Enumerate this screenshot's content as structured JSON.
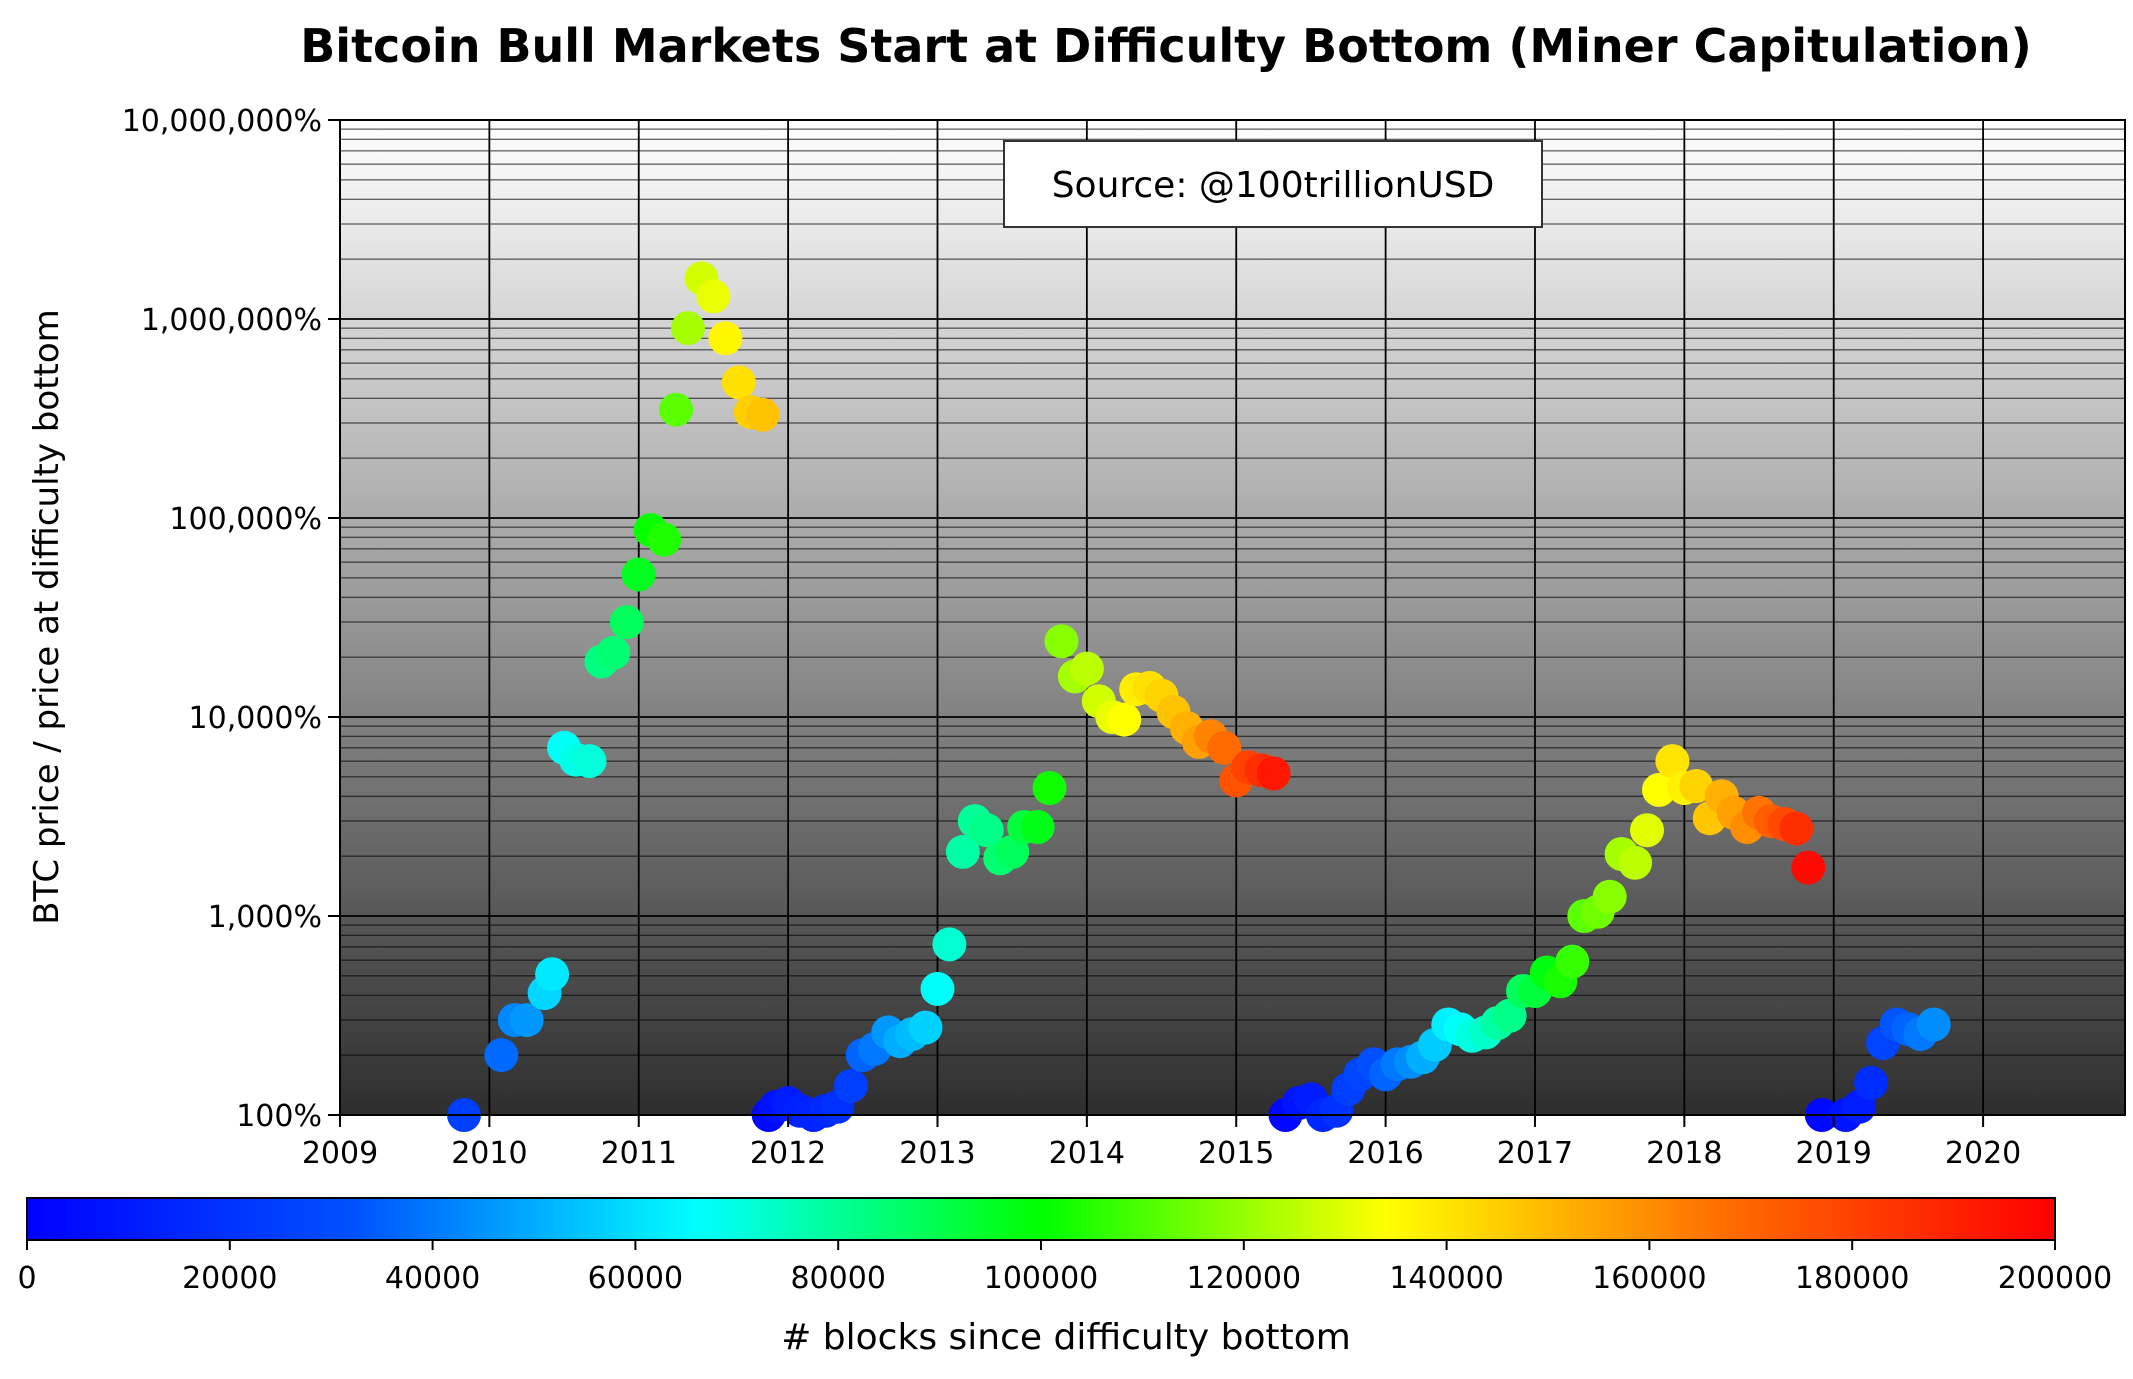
{
  "chart_data": {
    "type": "scatter",
    "title": "Bitcoin Bull Markets Start at Difficulty Bottom (Miner Capitulation)",
    "ylabel": "BTC price / price at difficulty bottom",
    "xlabel": "",
    "y_scale": "log",
    "y_unit": "%",
    "ylim": [
      100,
      10000000
    ],
    "y_ticks": [
      {
        "value": 100,
        "label": "100%"
      },
      {
        "value": 1000,
        "label": "1,000%"
      },
      {
        "value": 10000,
        "label": "10,000%"
      },
      {
        "value": 100000,
        "label": "100,000%"
      },
      {
        "value": 1000000,
        "label": "1,000,000%"
      },
      {
        "value": 10000000,
        "label": "10,000,000%"
      }
    ],
    "xlim": [
      2009.0,
      2020.95
    ],
    "x_ticks": [
      {
        "value": 2009,
        "label": "2009"
      },
      {
        "value": 2010,
        "label": "2010"
      },
      {
        "value": 2011,
        "label": "2011"
      },
      {
        "value": 2012,
        "label": "2012"
      },
      {
        "value": 2013,
        "label": "2013"
      },
      {
        "value": 2014,
        "label": "2014"
      },
      {
        "value": 2015,
        "label": "2015"
      },
      {
        "value": 2016,
        "label": "2016"
      },
      {
        "value": 2017,
        "label": "2017"
      },
      {
        "value": 2018,
        "label": "2018"
      },
      {
        "value": 2019,
        "label": "2019"
      },
      {
        "value": 2020,
        "label": "2020"
      }
    ],
    "grid": true,
    "annotation": "Source: @100trillionUSD",
    "colorbar": {
      "label": "# blocks since difficulty bottom",
      "min": 0,
      "max": 200000,
      "colormap": "jet",
      "ticks": [
        {
          "value": 0,
          "label": "0"
        },
        {
          "value": 20000,
          "label": "20000"
        },
        {
          "value": 40000,
          "label": "40000"
        },
        {
          "value": 60000,
          "label": "60000"
        },
        {
          "value": 80000,
          "label": "80000"
        },
        {
          "value": 100000,
          "label": "100000"
        },
        {
          "value": 120000,
          "label": "120000"
        },
        {
          "value": 140000,
          "label": "140000"
        },
        {
          "value": 160000,
          "label": "160000"
        },
        {
          "value": 180000,
          "label": "180000"
        },
        {
          "value": 200000,
          "label": "200000"
        }
      ]
    },
    "points": [
      {
        "x": 2009.83,
        "y": 100,
        "blocks": 25000
      },
      {
        "x": 2010.08,
        "y": 200,
        "blocks": 37000
      },
      {
        "x": 2010.17,
        "y": 300,
        "blocks": 43000
      },
      {
        "x": 2010.25,
        "y": 300,
        "blocks": 46000
      },
      {
        "x": 2010.37,
        "y": 410,
        "blocks": 58000
      },
      {
        "x": 2010.42,
        "y": 510,
        "blocks": 62000
      },
      {
        "x": 2010.5,
        "y": 7000,
        "blocks": 67000
      },
      {
        "x": 2010.58,
        "y": 6100,
        "blocks": 69000
      },
      {
        "x": 2010.67,
        "y": 6000,
        "blocks": 71000
      },
      {
        "x": 2010.75,
        "y": 19000,
        "blocks": 83000
      },
      {
        "x": 2010.83,
        "y": 21000,
        "blocks": 85000
      },
      {
        "x": 2010.92,
        "y": 30000,
        "blocks": 88000
      },
      {
        "x": 2011.0,
        "y": 52000,
        "blocks": 96000
      },
      {
        "x": 2011.08,
        "y": 87000,
        "blocks": 101000
      },
      {
        "x": 2011.17,
        "y": 78000,
        "blocks": 104000
      },
      {
        "x": 2011.25,
        "y": 350000,
        "blocks": 112000
      },
      {
        "x": 2011.33,
        "y": 900000,
        "blocks": 122000
      },
      {
        "x": 2011.42,
        "y": 1600000,
        "blocks": 128000
      },
      {
        "x": 2011.5,
        "y": 1300000,
        "blocks": 131000
      },
      {
        "x": 2011.58,
        "y": 800000,
        "blocks": 136000
      },
      {
        "x": 2011.67,
        "y": 480000,
        "blocks": 141000
      },
      {
        "x": 2011.75,
        "y": 340000,
        "blocks": 145000
      },
      {
        "x": 2011.83,
        "y": 330000,
        "blocks": 148000
      },
      {
        "x": 2011.87,
        "y": 100,
        "blocks": 3000
      },
      {
        "x": 2011.92,
        "y": 110,
        "blocks": 7000
      },
      {
        "x": 2012.0,
        "y": 115,
        "blocks": 11000
      },
      {
        "x": 2012.08,
        "y": 105,
        "blocks": 13000
      },
      {
        "x": 2012.17,
        "y": 100,
        "blocks": 14000
      },
      {
        "x": 2012.25,
        "y": 105,
        "blocks": 16000
      },
      {
        "x": 2012.33,
        "y": 110,
        "blocks": 19000
      },
      {
        "x": 2012.42,
        "y": 140,
        "blocks": 25000
      },
      {
        "x": 2012.5,
        "y": 200,
        "blocks": 36000
      },
      {
        "x": 2012.58,
        "y": 215,
        "blocks": 40000
      },
      {
        "x": 2012.67,
        "y": 260,
        "blocks": 46000
      },
      {
        "x": 2012.75,
        "y": 235,
        "blocks": 50000
      },
      {
        "x": 2012.83,
        "y": 255,
        "blocks": 53000
      },
      {
        "x": 2012.92,
        "y": 275,
        "blocks": 57000
      },
      {
        "x": 2013.0,
        "y": 430,
        "blocks": 67000
      },
      {
        "x": 2013.08,
        "y": 720,
        "blocks": 72000
      },
      {
        "x": 2013.17,
        "y": 2100,
        "blocks": 78000
      },
      {
        "x": 2013.25,
        "y": 3000,
        "blocks": 80000
      },
      {
        "x": 2013.33,
        "y": 2700,
        "blocks": 82000
      },
      {
        "x": 2013.42,
        "y": 1950,
        "blocks": 85000
      },
      {
        "x": 2013.5,
        "y": 2100,
        "blocks": 88000
      },
      {
        "x": 2013.58,
        "y": 2800,
        "blocks": 92000
      },
      {
        "x": 2013.67,
        "y": 2800,
        "blocks": 97000
      },
      {
        "x": 2013.75,
        "y": 4400,
        "blocks": 102000
      },
      {
        "x": 2013.83,
        "y": 24000,
        "blocks": 118000
      },
      {
        "x": 2013.92,
        "y": 16000,
        "blocks": 122000
      },
      {
        "x": 2014.0,
        "y": 17500,
        "blocks": 125000
      },
      {
        "x": 2014.08,
        "y": 12000,
        "blocks": 128000
      },
      {
        "x": 2014.17,
        "y": 10000,
        "blocks": 131000
      },
      {
        "x": 2014.25,
        "y": 9700,
        "blocks": 134000
      },
      {
        "x": 2014.33,
        "y": 13800,
        "blocks": 138000
      },
      {
        "x": 2014.42,
        "y": 14000,
        "blocks": 141000
      },
      {
        "x": 2014.5,
        "y": 12800,
        "blocks": 144000
      },
      {
        "x": 2014.58,
        "y": 10600,
        "blocks": 148000
      },
      {
        "x": 2014.67,
        "y": 8800,
        "blocks": 152000
      },
      {
        "x": 2014.75,
        "y": 7500,
        "blocks": 156000
      },
      {
        "x": 2014.83,
        "y": 8000,
        "blocks": 162000
      },
      {
        "x": 2014.92,
        "y": 7000,
        "blocks": 168000
      },
      {
        "x": 2015.0,
        "y": 4800,
        "blocks": 175000
      },
      {
        "x": 2015.08,
        "y": 5600,
        "blocks": 180000
      },
      {
        "x": 2015.17,
        "y": 5400,
        "blocks": 186000
      },
      {
        "x": 2015.25,
        "y": 5200,
        "blocks": 193000
      },
      {
        "x": 2015.33,
        "y": 100,
        "blocks": 3000
      },
      {
        "x": 2015.42,
        "y": 115,
        "blocks": 8000
      },
      {
        "x": 2015.5,
        "y": 120,
        "blocks": 11000
      },
      {
        "x": 2015.58,
        "y": 100,
        "blocks": 15000
      },
      {
        "x": 2015.67,
        "y": 105,
        "blocks": 20000
      },
      {
        "x": 2015.75,
        "y": 135,
        "blocks": 25000
      },
      {
        "x": 2015.83,
        "y": 160,
        "blocks": 28000
      },
      {
        "x": 2015.92,
        "y": 180,
        "blocks": 32000
      },
      {
        "x": 2016.0,
        "y": 160,
        "blocks": 36000
      },
      {
        "x": 2016.08,
        "y": 180,
        "blocks": 40000
      },
      {
        "x": 2016.17,
        "y": 185,
        "blocks": 44000
      },
      {
        "x": 2016.25,
        "y": 195,
        "blocks": 50000
      },
      {
        "x": 2016.33,
        "y": 225,
        "blocks": 56000
      },
      {
        "x": 2016.42,
        "y": 285,
        "blocks": 63000
      },
      {
        "x": 2016.5,
        "y": 270,
        "blocks": 67000
      },
      {
        "x": 2016.58,
        "y": 250,
        "blocks": 70000
      },
      {
        "x": 2016.67,
        "y": 260,
        "blocks": 73000
      },
      {
        "x": 2016.75,
        "y": 290,
        "blocks": 78000
      },
      {
        "x": 2016.83,
        "y": 315,
        "blocks": 82000
      },
      {
        "x": 2016.92,
        "y": 420,
        "blocks": 88000
      },
      {
        "x": 2017.0,
        "y": 420,
        "blocks": 92000
      },
      {
        "x": 2017.08,
        "y": 520,
        "blocks": 98000
      },
      {
        "x": 2017.17,
        "y": 470,
        "blocks": 103000
      },
      {
        "x": 2017.25,
        "y": 590,
        "blocks": 107000
      },
      {
        "x": 2017.33,
        "y": 1000,
        "blocks": 112000
      },
      {
        "x": 2017.42,
        "y": 1050,
        "blocks": 115000
      },
      {
        "x": 2017.5,
        "y": 1250,
        "blocks": 118000
      },
      {
        "x": 2017.58,
        "y": 2050,
        "blocks": 122000
      },
      {
        "x": 2017.67,
        "y": 1850,
        "blocks": 125000
      },
      {
        "x": 2017.75,
        "y": 2700,
        "blocks": 130000
      },
      {
        "x": 2017.83,
        "y": 4300,
        "blocks": 134000
      },
      {
        "x": 2017.92,
        "y": 6000,
        "blocks": 140000
      },
      {
        "x": 2018.0,
        "y": 4400,
        "blocks": 137000
      },
      {
        "x": 2018.08,
        "y": 4500,
        "blocks": 144000
      },
      {
        "x": 2018.17,
        "y": 3100,
        "blocks": 147000
      },
      {
        "x": 2018.25,
        "y": 4000,
        "blocks": 152000
      },
      {
        "x": 2018.33,
        "y": 3300,
        "blocks": 156000
      },
      {
        "x": 2018.42,
        "y": 2800,
        "blocks": 160000
      },
      {
        "x": 2018.5,
        "y": 3300,
        "blocks": 166000
      },
      {
        "x": 2018.58,
        "y": 3000,
        "blocks": 172000
      },
      {
        "x": 2018.67,
        "y": 2900,
        "blocks": 178000
      },
      {
        "x": 2018.75,
        "y": 2750,
        "blocks": 186000
      },
      {
        "x": 2018.83,
        "y": 1750,
        "blocks": 197000
      },
      {
        "x": 2018.92,
        "y": 100,
        "blocks": 3000
      },
      {
        "x": 2019.08,
        "y": 100,
        "blocks": 8000
      },
      {
        "x": 2019.17,
        "y": 110,
        "blocks": 12000
      },
      {
        "x": 2019.25,
        "y": 145,
        "blocks": 18000
      },
      {
        "x": 2019.33,
        "y": 230,
        "blocks": 27000
      },
      {
        "x": 2019.42,
        "y": 285,
        "blocks": 33000
      },
      {
        "x": 2019.5,
        "y": 270,
        "blocks": 36000
      },
      {
        "x": 2019.58,
        "y": 255,
        "blocks": 40000
      },
      {
        "x": 2019.67,
        "y": 285,
        "blocks": 44000
      }
    ]
  }
}
